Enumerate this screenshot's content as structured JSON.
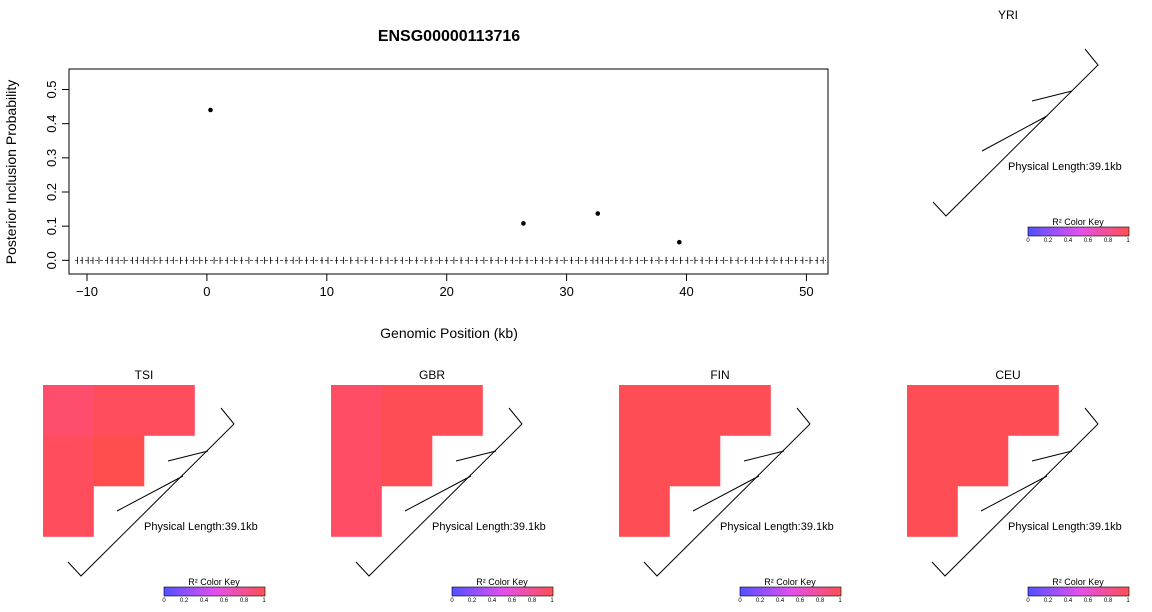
{
  "chart_data": [
    {
      "type": "scatter",
      "title": "ENSG00000113716",
      "xlabel": "Genomic Position (kb)",
      "ylabel": "Posterior Inclusion Probability",
      "xlim": [
        -11.5,
        51.8
      ],
      "ylim": [
        -0.04,
        0.56
      ],
      "xticks": [
        -10,
        0,
        10,
        20,
        30,
        40,
        50
      ],
      "yticks": [
        0.0,
        0.1,
        0.2,
        0.3,
        0.4,
        0.5
      ],
      "xtick_labels": [
        "−10",
        "0",
        "10",
        "20",
        "30",
        "40",
        "50"
      ],
      "ytick_labels": [
        "0.0",
        "0.1",
        "0.2",
        "0.3",
        "0.4",
        "0.5"
      ],
      "points": [
        {
          "x": 0.3,
          "y": 0.44
        },
        {
          "x": 26.4,
          "y": 0.108
        },
        {
          "x": 32.6,
          "y": 0.137
        },
        {
          "x": 39.4,
          "y": 0.053
        }
      ],
      "rug_x": [
        -10.8,
        -10.4,
        -9.9,
        -9.5,
        -9.0,
        -8.3,
        -7.9,
        -7.4,
        -6.9,
        -6.2,
        -5.8,
        -5.3,
        -4.9,
        -4.4,
        -3.9,
        -3.3,
        -2.8,
        -2.2,
        -1.7,
        -1.1,
        -0.6,
        -0.1,
        0.6,
        1.1,
        1.7,
        2.3,
        2.9,
        3.5,
        4.2,
        4.8,
        5.3,
        5.9,
        6.6,
        7.2,
        7.7,
        8.3,
        8.9,
        9.6,
        10.1,
        10.8,
        11.4,
        12.0,
        12.6,
        13.2,
        13.8,
        14.5,
        15.1,
        15.7,
        16.3,
        16.9,
        17.5,
        18.2,
        18.7,
        19.4,
        20.0,
        20.6,
        21.2,
        21.8,
        22.5,
        23.1,
        23.7,
        24.3,
        24.9,
        25.5,
        26.1,
        26.7,
        27.4,
        28.0,
        28.6,
        29.2,
        29.8,
        30.4,
        31.0,
        31.6,
        32.2,
        32.6,
        33.0,
        33.5,
        34.1,
        34.7,
        35.3,
        35.9,
        36.5,
        37.1,
        37.7,
        38.3,
        38.9,
        39.5,
        40.1,
        40.7,
        41.3,
        41.9,
        42.5,
        43.1,
        43.7,
        44.3,
        44.9,
        45.5,
        46.1,
        46.7,
        47.3,
        47.9,
        48.5,
        49.1,
        49.7,
        50.3,
        50.9,
        51.4
      ]
    },
    {
      "type": "heatmap",
      "panel": "YRI",
      "title": "YRI",
      "matrix_colors": [],
      "physical_length_label": "Physical Length:39.1kb",
      "color_key_label": "R² Color Key",
      "color_key_ticks": [
        "0",
        "0.2",
        "0.4",
        "0.6",
        "0.8",
        "1"
      ]
    },
    {
      "type": "heatmap",
      "panel": "TSI",
      "title": "TSI",
      "matrix_colors": [
        [
          "#ff4d6d",
          "#ff4d5e",
          "#ff4d5e"
        ],
        [
          "#ff4d5e",
          "#ff4d4d"
        ],
        [
          "#ff4d5e"
        ]
      ],
      "physical_length_label": "Physical Length:39.1kb",
      "color_key_label": "R² Color Key",
      "color_key_ticks": [
        "0",
        "0.2",
        "0.4",
        "0.6",
        "0.8",
        "1"
      ]
    },
    {
      "type": "heatmap",
      "panel": "GBR",
      "title": "GBR",
      "matrix_colors": [
        [
          "#ff4d66",
          "#ff4d55",
          "#ff4d55"
        ],
        [
          "#ff4d66",
          "#ff4d55"
        ],
        [
          "#ff4d66"
        ]
      ],
      "physical_length_label": "Physical Length:39.1kb",
      "color_key_label": "R² Color Key",
      "color_key_ticks": [
        "0",
        "0.2",
        "0.4",
        "0.6",
        "0.8",
        "1"
      ]
    },
    {
      "type": "heatmap",
      "panel": "FIN",
      "title": "FIN",
      "matrix_colors": [
        [
          "#ff4d55",
          "#ff4d55",
          "#ff4d55"
        ],
        [
          "#ff4d55",
          "#ff4d55"
        ],
        [
          "#ff4d55"
        ]
      ],
      "physical_length_label": "Physical Length:39.1kb",
      "color_key_label": "R² Color Key",
      "color_key_ticks": [
        "0",
        "0.2",
        "0.4",
        "0.6",
        "0.8",
        "1"
      ]
    },
    {
      "type": "heatmap",
      "panel": "CEU",
      "title": "CEU",
      "matrix_colors": [
        [
          "#ff4d55",
          "#ff4d55",
          "#ff4d55"
        ],
        [
          "#ff4d55",
          "#ff4d55"
        ],
        [
          "#ff4d55"
        ]
      ],
      "physical_length_label": "Physical Length:39.1kb",
      "color_key_label": "R² Color Key",
      "color_key_ticks": [
        "0",
        "0.2",
        "0.4",
        "0.6",
        "0.8",
        "1"
      ]
    }
  ]
}
